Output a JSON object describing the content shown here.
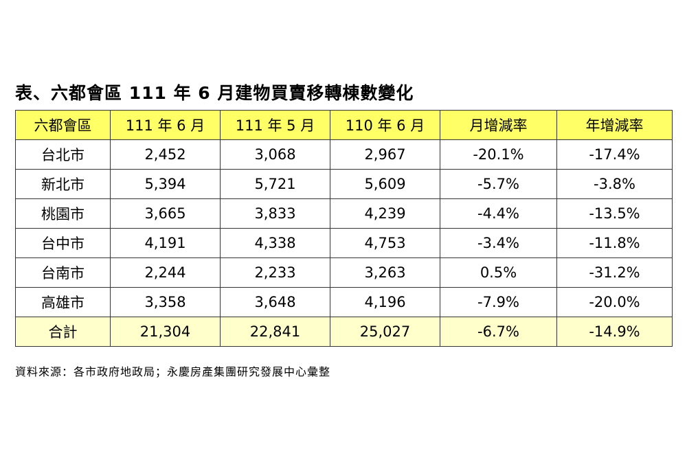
{
  "title": "表、六都會區 111 年 6 月建物買賣移轉棟數變化",
  "table": {
    "headers": [
      "六都會區",
      "111 年 6 月",
      "111 年 5 月",
      "110 年 6 月",
      "月增減率",
      "年增減率"
    ],
    "rows": [
      [
        "台北市",
        "2,452",
        "3,068",
        "2,967",
        "-20.1%",
        "-17.4%"
      ],
      [
        "新北市",
        "5,394",
        "5,721",
        "5,609",
        "-5.7%",
        "-3.8%"
      ],
      [
        "桃園市",
        "3,665",
        "3,833",
        "4,239",
        "-4.4%",
        "-13.5%"
      ],
      [
        "台中市",
        "4,191",
        "4,338",
        "4,753",
        "-3.4%",
        "-11.8%"
      ],
      [
        "台南市",
        "2,244",
        "2,233",
        "3,263",
        "0.5%",
        "-31.2%"
      ],
      [
        "高雄市",
        "3,358",
        "3,648",
        "4,196",
        "-7.9%",
        "-20.0%"
      ]
    ],
    "total": [
      "合計",
      "21,304",
      "22,841",
      "25,027",
      "-6.7%",
      "-14.9%"
    ]
  },
  "source": "資料來源：各市政府地政局；永慶房產集團研究發展中心彙整"
}
